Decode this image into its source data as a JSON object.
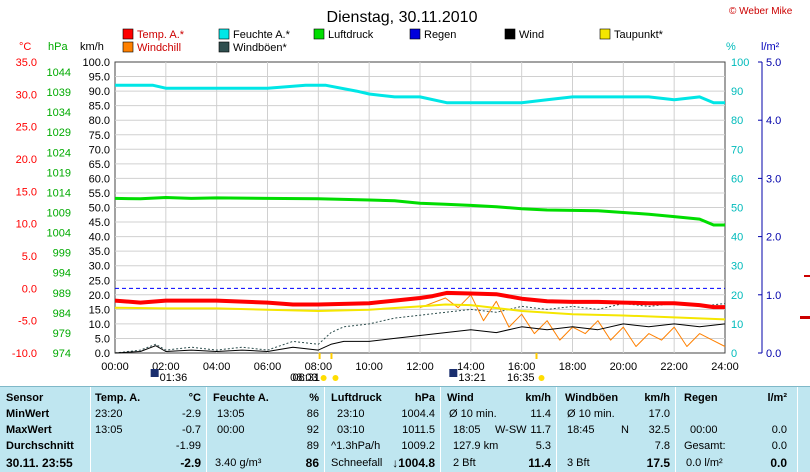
{
  "title": "Dienstag, 30.11.2010",
  "credit": "© Weber Mike",
  "legend": [
    {
      "label": "Temp. A.*",
      "color": "#ff0000"
    },
    {
      "label": "Feuchte A.*",
      "color": "#00e6e6"
    },
    {
      "label": "Luftdruck",
      "color": "#00dd00"
    },
    {
      "label": "Regen",
      "color": "#0000dd"
    },
    {
      "label": "Wind",
      "color": "#000000"
    },
    {
      "label": "Taupunkt*",
      "color": "#f5e600"
    },
    {
      "label": "Windchill",
      "color": "#ff8000"
    },
    {
      "label": "Windböen*",
      "color": "#2f4f4f"
    }
  ],
  "axis_units": {
    "temp": "°C",
    "pressure": "hPa",
    "wind": "km/h",
    "humidity": "%",
    "rain": "l/m²"
  },
  "chart_data": {
    "type": "line",
    "x_ticks": [
      "00:00",
      "02:00",
      "04:00",
      "06:00",
      "08:00",
      "10:00",
      "12:00",
      "14:00",
      "16:00",
      "18:00",
      "20:00",
      "22:00",
      "24:00"
    ],
    "temp_ticks": [
      "35.0",
      "30.0",
      "25.0",
      "20.0",
      "15.0",
      "10.0",
      "5.0",
      "0.0",
      "-5.0",
      "-10.0"
    ],
    "pressure_ticks": [
      "1044",
      "1039",
      "1034",
      "1029",
      "1024",
      "1019",
      "1014",
      "1009",
      "1004",
      "999",
      "994",
      "989",
      "984",
      "979",
      "974"
    ],
    "wind_ticks": [
      "100.0",
      "95.0",
      "90.0",
      "85.0",
      "80.0",
      "75.0",
      "70.0",
      "65.0",
      "60.0",
      "55.0",
      "50.0",
      "45.0",
      "40.0",
      "35.0",
      "30.0",
      "25.0",
      "20.0",
      "15.0",
      "10.0",
      "5.0",
      "0.0"
    ],
    "humidity_ticks": [
      "100",
      "90",
      "80",
      "70",
      "60",
      "50",
      "40",
      "30",
      "20",
      "10",
      "0"
    ],
    "rain_ticks": [
      "5.0",
      "4.0",
      "3.0",
      "2.0",
      "1.0",
      "0.0"
    ],
    "ylim_wind": [
      0,
      100
    ],
    "xlim_hours": [
      0,
      24
    ],
    "series": [
      {
        "name": "Feuchte A.*",
        "color": "#00e6e6",
        "unit": "%",
        "x": [
          0,
          1.5,
          2,
          4,
          6,
          7.5,
          8.3,
          9.5,
          10,
          11,
          12,
          13.05,
          14,
          16,
          17,
          18,
          19,
          20,
          21,
          22,
          23,
          23.55,
          24
        ],
        "y": [
          92,
          92,
          91,
          91,
          91,
          92,
          92,
          90,
          89,
          88,
          88,
          86,
          86,
          86,
          87,
          88,
          88,
          88,
          88,
          87,
          88,
          86,
          86
        ]
      },
      {
        "name": "Luftdruck",
        "color": "#00dd00",
        "unit": "hPa",
        "x": [
          0,
          1,
          2,
          3,
          4,
          6,
          8,
          10,
          11,
          12,
          13,
          14,
          15,
          16,
          17,
          18,
          19,
          20,
          21,
          22,
          23,
          23.55,
          24
        ],
        "y": [
          1011.2,
          1011.1,
          1011.4,
          1011.2,
          1011.3,
          1011.2,
          1011.1,
          1010.8,
          1010.6,
          1010.0,
          1009.8,
          1009.5,
          1009.2,
          1008.7,
          1008.4,
          1008.3,
          1008.2,
          1007.8,
          1007.4,
          1006.8,
          1006.2,
          1004.8,
          1004.8
        ]
      },
      {
        "name": "Temp. A.*",
        "color": "#ff0000",
        "unit": "°C",
        "x": [
          0,
          1,
          2,
          4,
          6,
          7,
          8,
          9,
          10,
          11,
          12,
          12.5,
          13.05,
          14,
          15,
          16,
          17,
          18,
          19,
          20,
          21,
          22,
          23,
          23.55,
          24
        ],
        "y": [
          -1.9,
          -2.2,
          -1.9,
          -1.9,
          -2.2,
          -2.5,
          -2.5,
          -2.4,
          -2.3,
          -1.9,
          -1.5,
          -1.2,
          -0.7,
          -0.8,
          -0.9,
          -1.6,
          -2.0,
          -2.1,
          -2.1,
          -2.2,
          -2.3,
          -2.3,
          -2.6,
          -2.9,
          -2.9
        ]
      },
      {
        "name": "Taupunkt*",
        "color": "#f5e600",
        "unit": "°C",
        "x": [
          0,
          2,
          4,
          6,
          8,
          10,
          12,
          13,
          14,
          16,
          18,
          20,
          22,
          24
        ],
        "y": [
          -3.0,
          -3.1,
          -3.1,
          -3.3,
          -3.5,
          -3.3,
          -2.8,
          -2.5,
          -2.6,
          -3.5,
          -4.0,
          -4.2,
          -4.5,
          -4.8
        ]
      },
      {
        "name": "Windchill",
        "color": "#ff8000",
        "unit": "°C",
        "x": [
          12,
          13,
          13.5,
          14,
          14.5,
          15,
          15.5,
          16,
          16.5,
          17,
          17.5,
          18,
          18.5,
          19,
          19.5,
          20,
          20.5,
          21,
          21.5,
          22,
          22.5,
          23,
          23.5,
          24
        ],
        "y": [
          -3,
          -1.5,
          -3,
          -1,
          -5,
          -2,
          -6,
          -4,
          -7,
          -5,
          -8,
          -6,
          -7,
          -5,
          -8,
          -6,
          -9,
          -7,
          -8,
          -6,
          -9,
          -7,
          -8,
          -9
        ]
      },
      {
        "name": "Wind",
        "color": "#000000",
        "unit": "km/h",
        "x": [
          0,
          1,
          1.6,
          2,
          3,
          4,
          5,
          6,
          7,
          8,
          8.5,
          9,
          10,
          11,
          12,
          13,
          14,
          15,
          16,
          17,
          18,
          19,
          20,
          21,
          22,
          23,
          24
        ],
        "y": [
          0,
          0.5,
          2.5,
          0.5,
          1,
          0.5,
          1,
          0.5,
          2,
          1,
          3,
          4,
          4,
          5,
          6,
          7,
          8,
          7,
          9,
          8,
          9,
          8,
          10,
          9,
          10,
          9,
          10
        ]
      },
      {
        "name": "Windböen*",
        "color": "#2f4f4f",
        "unit": "km/h",
        "x": [
          0,
          1,
          1.6,
          2,
          3,
          4,
          5,
          6,
          7,
          8,
          8.5,
          9,
          10,
          11,
          12,
          13,
          14,
          15,
          16,
          17,
          18,
          19,
          20,
          21,
          22,
          23,
          24
        ],
        "y": [
          0,
          1,
          3,
          1,
          2,
          1,
          2,
          1,
          4,
          3,
          7,
          9,
          10,
          12,
          13,
          14,
          15,
          14,
          16,
          15,
          16,
          15,
          17,
          16,
          17,
          16,
          17
        ]
      }
    ],
    "reference_lines": [
      {
        "axis": "temp",
        "value": 0,
        "color": "#0000ff",
        "style": "dashed"
      }
    ],
    "markers": [
      {
        "time": "08:31",
        "kind": "sunrise"
      },
      {
        "time": "01:36",
        "kind": "moonset"
      },
      {
        "time": "08:03",
        "kind": "sun-note"
      },
      {
        "time": "13:21",
        "kind": "moonrise"
      },
      {
        "time": "16:35",
        "kind": "sunset"
      }
    ]
  },
  "table": {
    "row_labels": [
      "Sensor",
      "MinWert",
      "MaxWert",
      "Durchschnitt",
      "30.11. 23:55"
    ],
    "temp": {
      "header": "Temp. A.",
      "unit": "°C",
      "min_time": "23:20",
      "min": "-2.9",
      "max_time": "13:05",
      "max": "-0.7",
      "avg": "-1.99",
      "current": "-2.9"
    },
    "humidity": {
      "header": "Feuchte A.",
      "unit": "%",
      "min_time": "13:05",
      "min": "86",
      "max_time": "00:00",
      "max": "92",
      "avg": "89",
      "current_note": "3.40 g/m³",
      "current": "86"
    },
    "pressure": {
      "header": "Luftdruck",
      "unit": "hPa",
      "min_time": "23:10",
      "min": "1004.4",
      "max_time": "03:10",
      "max": "1011.5",
      "trend": "^1.3hPa/h",
      "avg": "1009.2",
      "note": "Schneefall",
      "current": "↓1004.8"
    },
    "wind": {
      "header": "Wind",
      "unit": "km/h",
      "min_label": "Ø 10 min.",
      "min": "11.4",
      "max_time": "18:05",
      "max_dir": "W-SW",
      "max": "11.7",
      "dist": "127.9 km",
      "avg": "5.3",
      "bft": "2 Bft",
      "current": "11.4"
    },
    "gust": {
      "header": "Windböen",
      "unit": "km/h",
      "min_label": "Ø 10 min.",
      "min": "17.0",
      "max_time": "18:45",
      "max_dir": "N",
      "max": "32.5",
      "avg": "7.8",
      "bft": "3 Bft",
      "current": "17.5"
    },
    "rain": {
      "header": "Regen",
      "unit": "l/m²",
      "max_time": "00:00",
      "max": "0.0",
      "total_label": "Gesamt:",
      "total": "0.0",
      "current_note": "0.0 l/m²",
      "current": "0.0"
    }
  }
}
